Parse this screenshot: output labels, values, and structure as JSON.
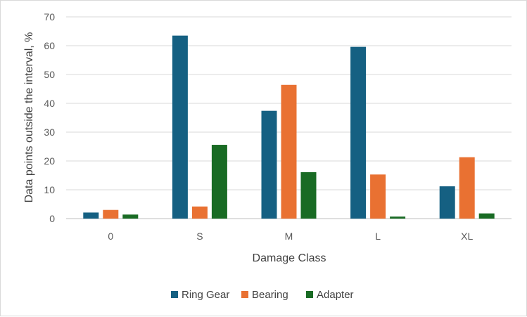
{
  "chart_data": {
    "type": "bar",
    "categories": [
      "0",
      "S",
      "M",
      "L",
      "XL"
    ],
    "series": [
      {
        "name": "Ring Gear",
        "color": "#156082",
        "values": [
          2.1,
          63.5,
          37.4,
          59.6,
          11.2
        ]
      },
      {
        "name": "Bearing",
        "color": "#E97132",
        "values": [
          3.0,
          4.2,
          46.4,
          15.3,
          21.3
        ]
      },
      {
        "name": "Adapter",
        "color": "#196B24",
        "values": [
          1.4,
          25.6,
          16.1,
          0.7,
          1.8
        ]
      }
    ],
    "title": "",
    "xlabel": "Damage Class",
    "ylabel": "Data points outside the interval, %",
    "ylim": [
      0,
      70
    ],
    "yticks": [
      0,
      10,
      20,
      30,
      40,
      50,
      60,
      70
    ],
    "grid": true,
    "legend_position": "bottom"
  }
}
